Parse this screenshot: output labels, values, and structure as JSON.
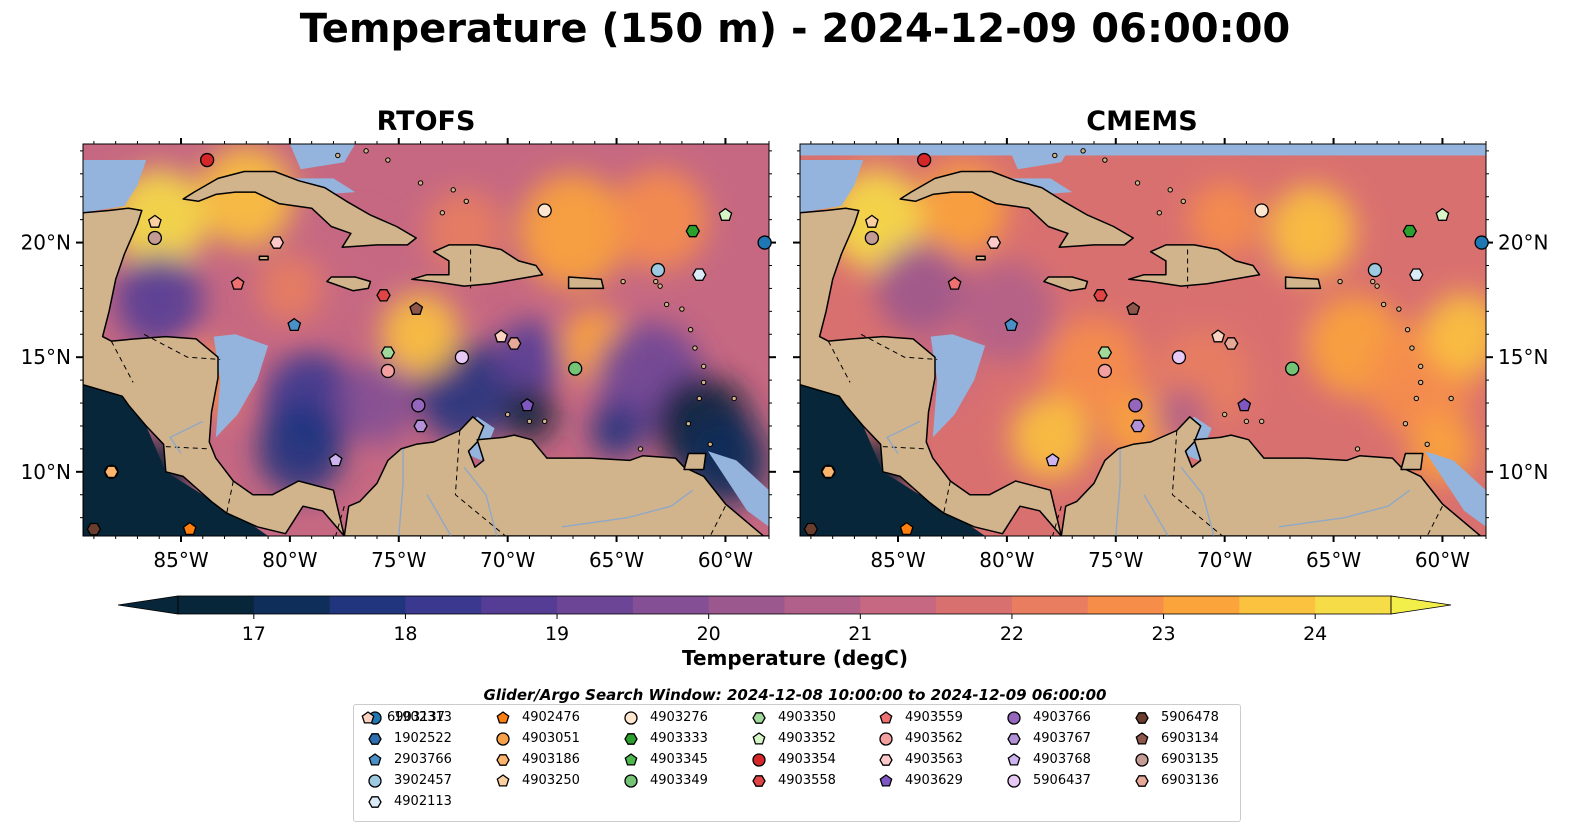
{
  "title": "Temperature (150 m) - 2024-12-09 06:00:00",
  "panels": [
    {
      "name": "RTOFS"
    },
    {
      "name": "CMEMS"
    }
  ],
  "colors": {
    "land": "#d2b48c",
    "masked_ocean": "#94b4de",
    "deep_cold": "#08263a",
    "coast": "#000000",
    "river": "#8fa8c8"
  },
  "chart_data": {
    "type": "heatmap",
    "title": "Temperature (150 m) - 2024-12-09 06:00:00",
    "region": {
      "lon": [
        -89.5,
        -58.0
      ],
      "lat": [
        7.2,
        24.3
      ]
    },
    "xticks": [
      -85,
      -80,
      -75,
      -70,
      -65,
      -60
    ],
    "xtick_labels": [
      "85°W",
      "80°W",
      "75°W",
      "70°W",
      "65°W",
      "60°W"
    ],
    "yticks": [
      10,
      15,
      20
    ],
    "ytick_labels": [
      "10°N",
      "15°N",
      "20°N"
    ],
    "colorbar": {
      "label": "Temperature (degC)",
      "range": [
        16.5,
        24.5
      ],
      "ticks": [
        17,
        18,
        19,
        20,
        21,
        22,
        23,
        24
      ],
      "tick_labels": [
        "17",
        "18",
        "19",
        "20",
        "21",
        "22",
        "23",
        "24"
      ],
      "colors": [
        "#08263a",
        "#0f2e5a",
        "#21347e",
        "#3b3890",
        "#553d96",
        "#6d4597",
        "#844f94",
        "#9b588e",
        "#b1608a",
        "#c66882",
        "#d97070",
        "#e87e5f",
        "#f68e4a",
        "#fba43c",
        "#fbc23f",
        "#f6dd47"
      ]
    },
    "search_window_label": "Glider/Argo Search Window: 2024-12-08 10:00:00 to 2024-12-09 06:00:00",
    "floats": [
      {
        "id": "1902313",
        "marker": "circle",
        "color": "#1f77b4",
        "lon": -58.2,
        "lat": 20.0
      },
      {
        "id": "1902522",
        "marker": "hexagon",
        "color": "#2f6fb0",
        "lon": null,
        "lat": null
      },
      {
        "id": "2903766",
        "marker": "pentagon",
        "color": "#4a90c8",
        "lon": -79.8,
        "lat": 16.4
      },
      {
        "id": "3902457",
        "marker": "circle",
        "color": "#9ecae1",
        "lon": -63.1,
        "lat": 18.8
      },
      {
        "id": "4902113",
        "marker": "hexagon",
        "color": "#dbecf8",
        "lon": -61.2,
        "lat": 18.6
      },
      {
        "id": "4902476",
        "marker": "pentagon",
        "color": "#ff7f0e",
        "lon": -84.6,
        "lat": 7.5
      },
      {
        "id": "4903051",
        "marker": "circle",
        "color": "#f6a04a",
        "lon": -88.2,
        "lat": 10.0
      },
      {
        "id": "4903186",
        "marker": "hexagon",
        "color": "#fdb46c",
        "lon": -88.2,
        "lat": 10.0
      },
      {
        "id": "4903250",
        "marker": "pentagon",
        "color": "#fdd0a2",
        "lon": -86.2,
        "lat": 20.9
      },
      {
        "id": "4903276",
        "marker": "circle",
        "color": "#fee6ce",
        "lon": -68.3,
        "lat": 21.4
      },
      {
        "id": "4903333",
        "marker": "hexagon",
        "color": "#2ca02c",
        "lon": -61.5,
        "lat": 20.5
      },
      {
        "id": "4903345",
        "marker": "pentagon",
        "color": "#4cb84c",
        "lon": null,
        "lat": null
      },
      {
        "id": "4903349",
        "marker": "circle",
        "color": "#74c476",
        "lon": -66.9,
        "lat": 14.5
      },
      {
        "id": "4903350",
        "marker": "hexagon",
        "color": "#a1d99b",
        "lon": -75.5,
        "lat": 15.2
      },
      {
        "id": "4903352",
        "marker": "pentagon",
        "color": "#d8f5c8",
        "lon": -60.0,
        "lat": 21.2
      },
      {
        "id": "4903354",
        "marker": "circle",
        "color": "#d62728",
        "lon": -83.8,
        "lat": 23.6
      },
      {
        "id": "4903558",
        "marker": "hexagon",
        "color": "#e04444",
        "lon": -75.7,
        "lat": 17.7
      },
      {
        "id": "4903559",
        "marker": "pentagon",
        "color": "#ee7070",
        "lon": -82.4,
        "lat": 18.2
      },
      {
        "id": "4903562",
        "marker": "circle",
        "color": "#f4a0a0",
        "lon": -75.5,
        "lat": 14.4
      },
      {
        "id": "4903563",
        "marker": "hexagon",
        "color": "#fcc8c8",
        "lon": -80.6,
        "lat": 20.0
      },
      {
        "id": "4903629",
        "marker": "pentagon",
        "color": "#7e57c2",
        "lon": -69.1,
        "lat": 12.9
      },
      {
        "id": "4903766",
        "marker": "circle",
        "color": "#9467bd",
        "lon": -74.1,
        "lat": 12.9
      },
      {
        "id": "4903767",
        "marker": "hexagon",
        "color": "#b291d8",
        "lon": -74.0,
        "lat": 12.0
      },
      {
        "id": "4903768",
        "marker": "pentagon",
        "color": "#cdb4f0",
        "lon": -77.9,
        "lat": 10.5
      },
      {
        "id": "5906437",
        "marker": "circle",
        "color": "#e8c8f4",
        "lon": -72.1,
        "lat": 15.0
      },
      {
        "id": "5906478",
        "marker": "hexagon",
        "color": "#6b3d2e",
        "lon": -89.0,
        "lat": 7.5
      },
      {
        "id": "6903134",
        "marker": "pentagon",
        "color": "#8c564b",
        "lon": -74.2,
        "lat": 17.1
      },
      {
        "id": "6903135",
        "marker": "circle",
        "color": "#c49c94",
        "lon": -86.2,
        "lat": 20.2
      },
      {
        "id": "6903136",
        "marker": "hexagon",
        "color": "#e8a898",
        "lon": -69.7,
        "lat": 15.6
      },
      {
        "id": "6903137",
        "marker": "pentagon",
        "color": "#fbd2c2",
        "lon": -70.3,
        "lat": 15.9
      }
    ]
  }
}
